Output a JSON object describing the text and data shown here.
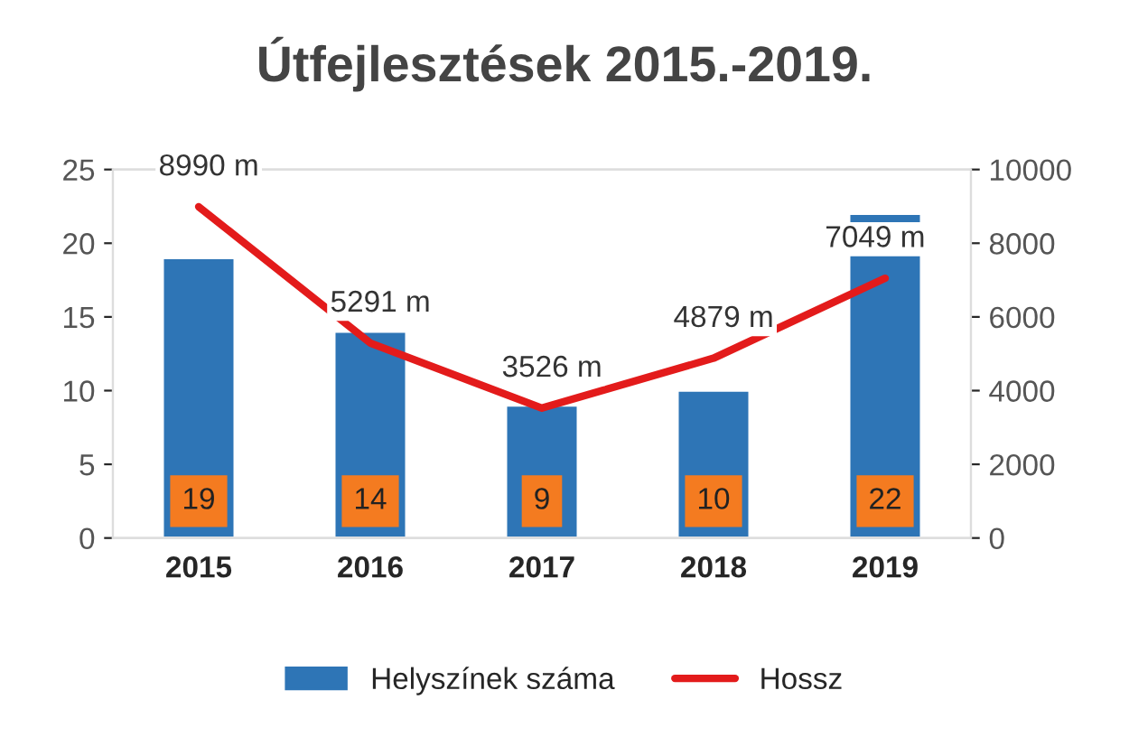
{
  "chart_data": {
    "type": "bar",
    "title": "Útfejlesztések 2015.-2019.",
    "categories": [
      "2015",
      "2016",
      "2017",
      "2018",
      "2019"
    ],
    "series": [
      {
        "name": "Helyszínek száma",
        "color": "#2e75b6",
        "values": [
          19,
          14,
          9,
          10,
          22
        ],
        "value_labels": [
          "19",
          "14",
          "9",
          "10",
          "22"
        ]
      },
      {
        "name": "Hossz",
        "type": "line",
        "axis": "y2",
        "color": "#e31b1b",
        "values": [
          8990,
          5291,
          3526,
          4879,
          7049
        ],
        "value_labels": [
          "8990 m",
          "5291 m",
          "3526 m",
          "4879 m",
          "7049 m"
        ]
      }
    ],
    "ylim": [
      0,
      25
    ],
    "yticks": [
      0,
      5,
      10,
      15,
      20,
      25
    ],
    "y2lim": [
      0,
      10000
    ],
    "y2ticks": [
      0,
      2000,
      4000,
      6000,
      8000,
      10000
    ],
    "legend": "bottom",
    "grid": false,
    "marker": "none",
    "line_style": "solid"
  }
}
